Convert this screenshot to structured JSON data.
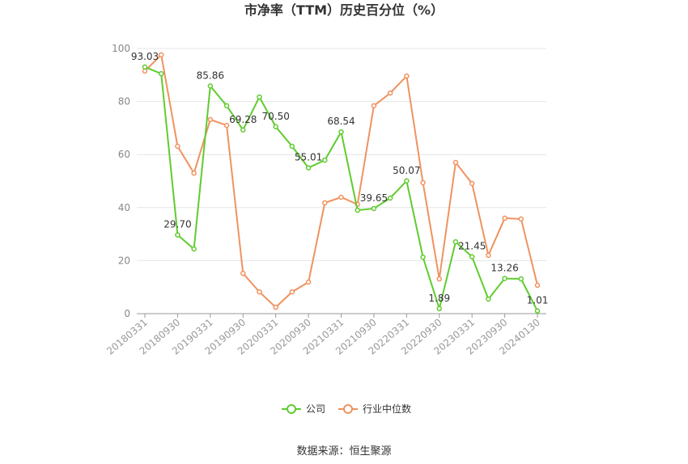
{
  "chart_data": {
    "type": "line",
    "title": "市净率（TTM）历史百分位（%）",
    "source": "数据来源：恒生聚源",
    "categories": [
      "20180331",
      null,
      "20180930",
      null,
      "20190331",
      null,
      "20190930",
      null,
      "20200331",
      null,
      "20200930",
      null,
      "20210331",
      null,
      "20210930",
      null,
      "20220331",
      null,
      "20220930",
      null,
      "20230331",
      null,
      "20230930",
      null,
      "20240130"
    ],
    "series": [
      {
        "name": "公司",
        "color": "#5fcc2e",
        "values": [
          93.03,
          90.5,
          29.7,
          24.4,
          85.86,
          78.4,
          69.28,
          81.7,
          70.5,
          63.1,
          55.01,
          57.9,
          68.54,
          39.0,
          39.65,
          43.6,
          50.07,
          21.3,
          1.89,
          27.1,
          21.45,
          5.5,
          13.26,
          13.1,
          1.01
        ],
        "value_labels": [
          "93.03",
          null,
          "29.70",
          null,
          "85.86",
          null,
          "69.28",
          null,
          "70.50",
          null,
          "55.01",
          null,
          "68.54",
          null,
          "39.65",
          null,
          "50.07",
          null,
          "1.89",
          null,
          "21.45",
          null,
          "13.26",
          null,
          "1.01"
        ]
      },
      {
        "name": "行业中位数",
        "color": "#f0925f",
        "values": [
          91.5,
          97.6,
          63.1,
          53.0,
          73.2,
          71.0,
          15.2,
          8.2,
          2.4,
          8.2,
          11.9,
          41.8,
          43.9,
          41.2,
          78.4,
          83.2,
          89.6,
          49.4,
          13.1,
          57.0,
          49.1,
          22.0,
          36.0,
          35.7,
          10.7
        ]
      }
    ],
    "ylim": [
      0,
      100
    ],
    "yticks": [
      0,
      20,
      40,
      60,
      80,
      100
    ],
    "grid": true
  }
}
